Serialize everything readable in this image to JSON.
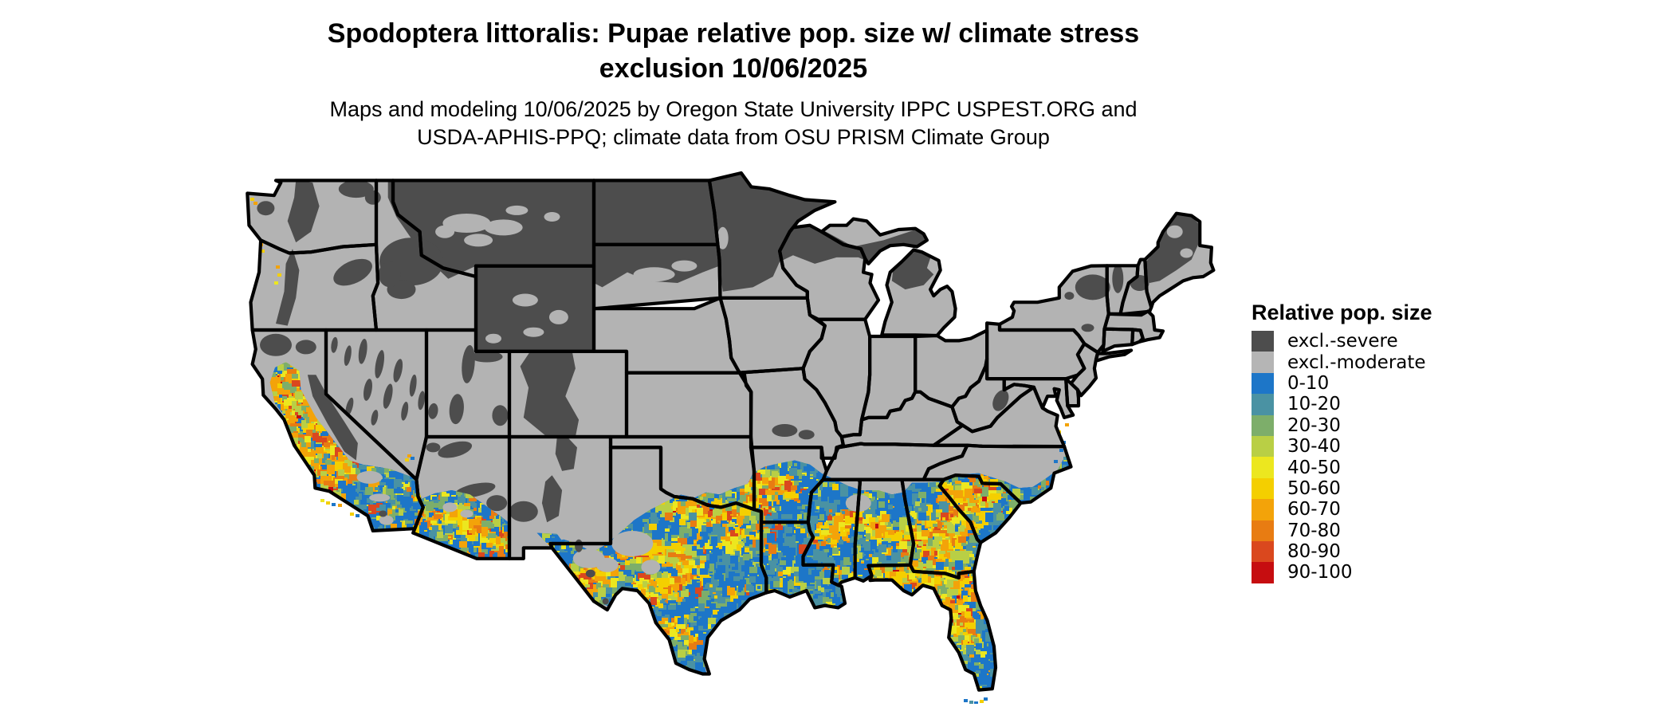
{
  "title": {
    "line1": "Spodoptera littoralis: Pupae relative pop. size w/ climate stress",
    "line2": "exclusion 10/06/2025"
  },
  "subtitle": {
    "line1": "Maps and modeling 10/06/2025 by Oregon State University IPPC USPEST.ORG and",
    "line2": "USDA-APHIS-PPQ; climate data from OSU PRISM Climate Group"
  },
  "legend": {
    "title": "Relative pop. size",
    "entries": [
      {
        "label": "excl.-severe",
        "color": "#4d4d4d"
      },
      {
        "label": "excl.-moderate",
        "color": "#b5b5b5"
      },
      {
        "label": "0-10",
        "color": "#1d76c8"
      },
      {
        "label": "10-20",
        "color": "#4a92a3"
      },
      {
        "label": "20-30",
        "color": "#7dae6a"
      },
      {
        "label": "30-40",
        "color": "#b9cf45"
      },
      {
        "label": "40-50",
        "color": "#ece71f"
      },
      {
        "label": "50-60",
        "color": "#f4cf00"
      },
      {
        "label": "60-70",
        "color": "#f3a309"
      },
      {
        "label": "70-80",
        "color": "#e87c12"
      },
      {
        "label": "80-90",
        "color": "#da481e"
      },
      {
        "label": "90-100",
        "color": "#c60d10"
      }
    ]
  },
  "map": {
    "region": "Continental United States",
    "colors": {
      "background": "#ffffff",
      "water": "#ffffff",
      "border": "#000000",
      "excluded_severe": "#4d4d4d",
      "excluded_moderate": "#b3b3b3",
      "base_population": "#1d76c8"
    }
  }
}
